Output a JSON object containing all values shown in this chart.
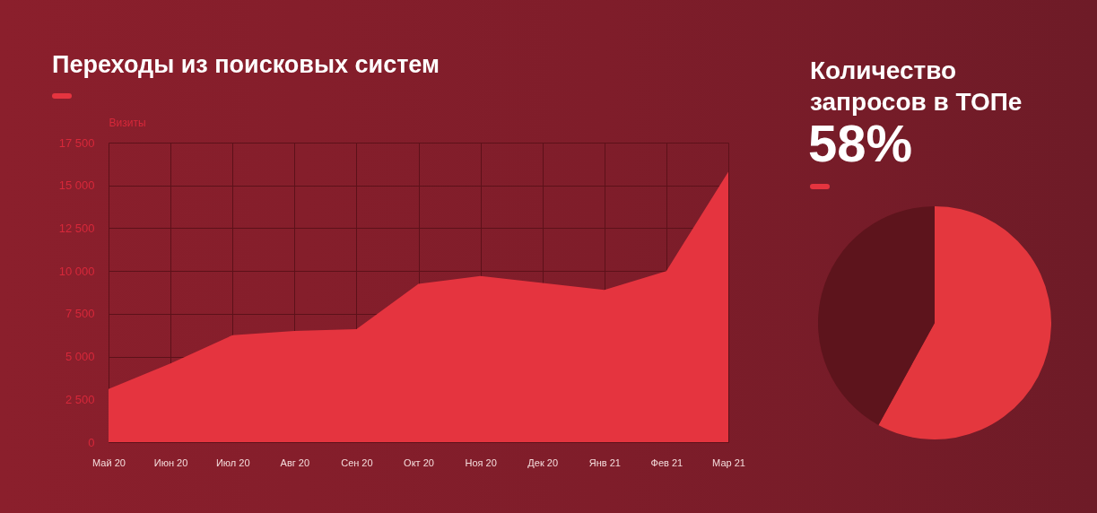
{
  "chart_data": [
    {
      "type": "area",
      "title": "Переходы из поисковых систем",
      "ylabel": "Визиты",
      "categories": [
        "Май 20",
        "Июн 20",
        "Июл 20",
        "Авг 20",
        "Сен 20",
        "Окт 20",
        "Ноя 20",
        "Дек 20",
        "Янв 21",
        "Фев 21",
        "Мар 21"
      ],
      "values": [
        3100,
        4600,
        6250,
        6500,
        6600,
        9250,
        9700,
        9300,
        8900,
        10000,
        15800
      ],
      "color": "#e5343f",
      "ylim": [
        0,
        17500
      ],
      "yticks": [
        0,
        {
          "value": 2500,
          "label": "2 500"
        },
        {
          "value": 5000,
          "label": "5 000"
        },
        {
          "value": 7500,
          "label": "7 500"
        },
        {
          "value": 10000,
          "label": "10 000"
        },
        {
          "value": 12500,
          "label": "12 500"
        },
        {
          "value": 15000,
          "label": "15 000"
        },
        {
          "value": 17500,
          "label": "17 500"
        }
      ],
      "grid": true
    },
    {
      "type": "pie",
      "title": "Количество запросов в ТОПе",
      "subtitle": "58%",
      "categories": [
        null,
        null
      ],
      "values": [
        58,
        42
      ],
      "colors": [
        "#e4373e",
        "#5d141c"
      ]
    }
  ]
}
